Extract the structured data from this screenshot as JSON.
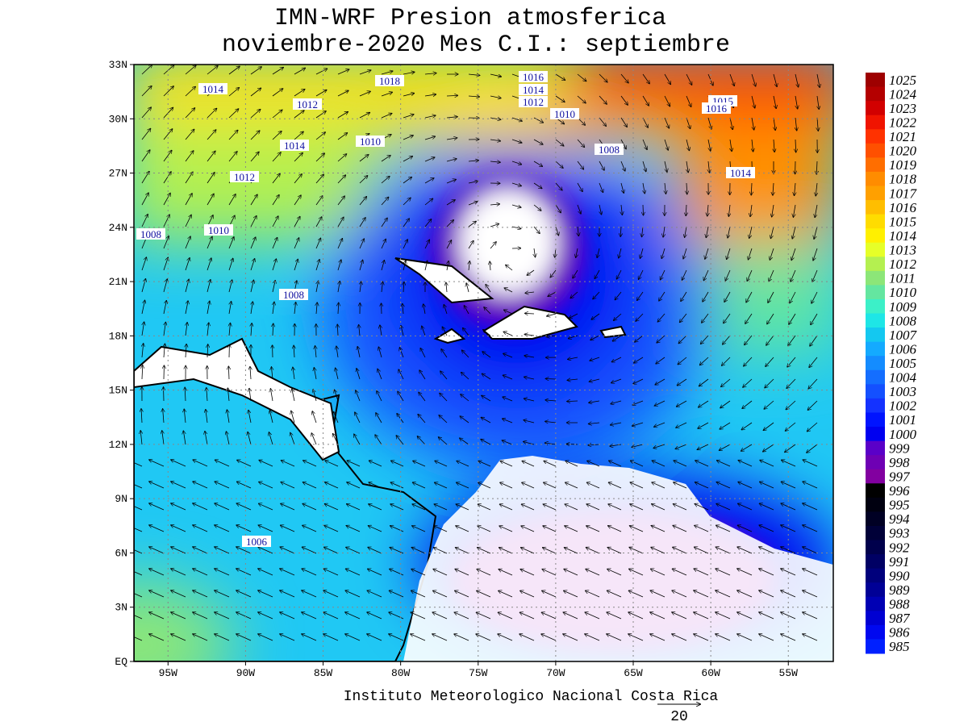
{
  "title": [
    "IMN-WRF  Presion atmosferica",
    "noviembre-2020 Mes C.I.: septiembre"
  ],
  "map": {
    "lat_labels": [
      "33N",
      "30N",
      "27N",
      "24N",
      "21N",
      "18N",
      "15N",
      "12N",
      "9N",
      "6N",
      "3N",
      "EQ"
    ],
    "lon_labels": [
      "95W",
      "90W",
      "85W",
      "80W",
      "75W",
      "70W",
      "65W",
      "60W",
      "55W"
    ],
    "contour_labels": [
      "1014",
      "1012",
      "1018",
      "1016",
      "1014",
      "1012",
      "1010",
      "1015",
      "1016",
      "1008",
      "1014",
      "1014",
      "1010",
      "1012",
      "1008",
      "1010",
      "1008",
      "1006"
    ]
  },
  "colorbar": {
    "levels": [
      1025,
      1024,
      1023,
      1022,
      1021,
      1020,
      1019,
      1018,
      1017,
      1016,
      1015,
      1014,
      1013,
      1012,
      1011,
      1010,
      1009,
      1008,
      1007,
      1006,
      1005,
      1004,
      1003,
      1002,
      1001,
      1000,
      999,
      998,
      997,
      996,
      995,
      994,
      993,
      992,
      991,
      990,
      989,
      988,
      987,
      986,
      985
    ],
    "colors": [
      "#9e0000",
      "#b40000",
      "#d20000",
      "#f01400",
      "#ff3200",
      "#ff5000",
      "#ff6e00",
      "#ff8c00",
      "#ffa000",
      "#ffbe00",
      "#ffdc00",
      "#fff000",
      "#e6ff28",
      "#b4f050",
      "#8ce678",
      "#64e6a0",
      "#3cf0c8",
      "#1ee6e6",
      "#14c8f0",
      "#14aaff",
      "#148cff",
      "#146eff",
      "#1450ff",
      "#1432ff",
      "#0014ff",
      "#0000f0",
      "#5a00c8",
      "#6e00b4",
      "#8200a0",
      "#000000",
      "#000010",
      "#000024",
      "#000038",
      "#00004c",
      "#000064",
      "#00007c",
      "#000096",
      "#0000b4",
      "#0000d2",
      "#0008f0",
      "#0020ff"
    ]
  },
  "footer": {
    "credit": "Instituto Meteorologico Nacional Costa Rica",
    "vector_scale": "20"
  }
}
